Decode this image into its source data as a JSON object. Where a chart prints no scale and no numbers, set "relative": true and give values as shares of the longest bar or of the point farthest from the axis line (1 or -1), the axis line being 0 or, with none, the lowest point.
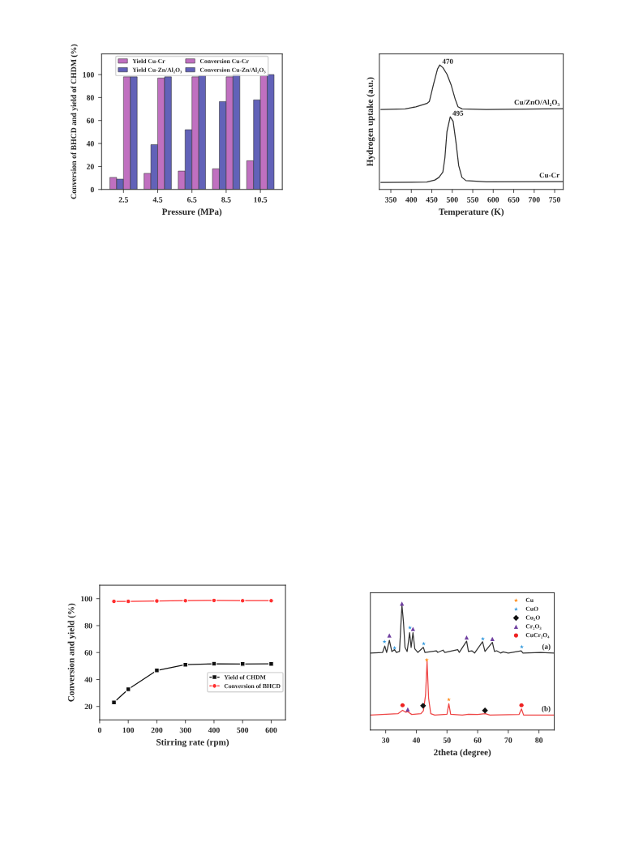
{
  "chart_data": [
    {
      "type": "bar",
      "categories": [
        "2.5",
        "4.5",
        "6.5",
        "8.5",
        "10.5"
      ],
      "xlabel": "Pressure (MPa)",
      "ylabel": "Conversion of BHCD and yield of CHDM (%)",
      "ylim": [
        0,
        118
      ],
      "yticks": [
        0,
        20,
        40,
        60,
        80,
        100
      ],
      "legend": "top",
      "series": [
        {
          "name": "Yield Cu-Cr",
          "color": "#c070c0",
          "values": [
            10.5,
            14,
            16,
            18,
            25
          ]
        },
        {
          "name": "Yield Cu-Zn/Al₂O₃",
          "color": "#6262b8",
          "values": [
            9,
            39,
            52,
            76.5,
            78
          ]
        },
        {
          "name": "Conversion Cu-Cr",
          "color": "#c070c0",
          "values": [
            98,
            97,
            98,
            98,
            99
          ]
        },
        {
          "name": "Conversion Cu-Zn/Al₂O₃",
          "color": "#6262b8",
          "values": [
            98,
            98,
            99,
            100,
            100
          ]
        }
      ]
    },
    {
      "type": "line",
      "relative": true,
      "xlabel": "Temperature (K)",
      "ylabel": "Hydrogen uptake (a.u.)",
      "xlim": [
        322,
        771
      ],
      "xticks": [
        350,
        400,
        450,
        500,
        550,
        600,
        650,
        700,
        750
      ],
      "series": [
        {
          "name": "Cu/ZnO/Al₂O₃",
          "color": "#303030",
          "x": [
            325.6,
            385,
            411,
            438,
            444,
            454,
            464,
            469.5,
            477,
            487,
            497,
            507,
            514,
            524,
            583,
            771
          ],
          "values": [
            0.643,
            0.647,
            0.664,
            0.691,
            0.706,
            0.842,
            0.968,
            1.0,
            0.979,
            0.926,
            0.842,
            0.727,
            0.664,
            0.647,
            0.643,
            0.649
          ]
        },
        {
          "name": "Cu-Cr",
          "color": "#303030",
          "x": [
            325.6,
            438,
            457.6,
            467.5,
            477,
            482,
            487,
            495,
            502,
            509,
            515.7,
            523.6,
            533.5,
            583,
            771
          ],
          "values": [
            0.057,
            0.059,
            0.076,
            0.097,
            0.139,
            0.254,
            0.464,
            0.584,
            0.548,
            0.38,
            0.191,
            0.097,
            0.071,
            0.061,
            0.063
          ]
        }
      ],
      "annotations": [
        {
          "text": "470",
          "x": 470,
          "y": 1.0
        },
        {
          "text": "495",
          "x": 495,
          "y": 0.584
        }
      ]
    },
    {
      "type": "line",
      "xlabel": "Stirring rate (rpm)",
      "ylabel": "Conversion and yield (%)",
      "xlim": [
        0,
        650
      ],
      "xticks": [
        0,
        100,
        200,
        300,
        400,
        500,
        600
      ],
      "ylim": [
        10,
        110
      ],
      "yticks": [
        20,
        40,
        60,
        80,
        100
      ],
      "legend": "right",
      "x": [
        50,
        100,
        200,
        300,
        400,
        500,
        600
      ],
      "series": [
        {
          "name": "Yield of CHDM",
          "color": "#111111",
          "marker": "square",
          "values": [
            23,
            32.8,
            46.7,
            51,
            51.7,
            51.5,
            51.6
          ]
        },
        {
          "name": "Conversion of BHCD",
          "color": "#ff3030",
          "marker": "circle",
          "values": [
            98,
            98,
            98.3,
            98.5,
            98.7,
            98.5,
            98.5
          ]
        }
      ]
    },
    {
      "type": "line",
      "relative": true,
      "xlabel": "2theta (degree)",
      "xlim": [
        25,
        85
      ],
      "xticks": [
        30,
        40,
        50,
        60,
        70,
        80
      ],
      "legend": "top right",
      "series": [
        {
          "name": "(a)",
          "color": "#333333",
          "x": [
            25,
            29,
            29.7,
            30.3,
            31.2,
            32,
            32.9,
            33.5,
            34.5,
            35.3,
            35.8,
            36.3,
            37,
            37.8,
            38.3,
            38.9,
            39.5,
            40.5,
            42.3,
            42.8,
            46.5,
            47,
            48.7,
            49.3,
            53.5,
            54,
            56.4,
            57,
            58.1,
            59,
            61.6,
            62.4,
            64.8,
            65.5,
            66.2,
            67.5,
            68.3,
            70,
            74.2,
            74.8,
            80.5,
            85
          ],
          "values": [
            0.609,
            0.614,
            0.665,
            0.614,
            0.71,
            0.621,
            0.636,
            0.614,
            0.621,
            0.989,
            0.855,
            0.654,
            0.621,
            0.77,
            0.654,
            0.77,
            0.643,
            0.614,
            0.654,
            0.614,
            0.627,
            0.614,
            0.632,
            0.614,
            0.636,
            0.614,
            0.703,
            0.621,
            0.627,
            0.609,
            0.699,
            0.621,
            0.694,
            0.621,
            0.627,
            0.609,
            0.618,
            0.609,
            0.627,
            0.609,
            0.614,
            0.609
          ]
        },
        {
          "name": "(b)",
          "color": "#ee4444",
          "x": [
            25,
            34,
            35.5,
            36.5,
            37.2,
            38.5,
            41.5,
            42.3,
            43,
            43.5,
            44,
            44.7,
            46,
            50,
            50.6,
            51.2,
            55,
            57,
            60,
            62.5,
            64,
            73.5,
            74.3,
            75,
            85
          ],
          "values": [
            0.118,
            0.129,
            0.156,
            0.141,
            0.145,
            0.123,
            0.129,
            0.152,
            0.275,
            0.542,
            0.252,
            0.129,
            0.118,
            0.125,
            0.208,
            0.125,
            0.118,
            0.125,
            0.123,
            0.129,
            0.118,
            0.123,
            0.167,
            0.118,
            0.118
          ]
        },
        {
          "name": "Cu",
          "type": "scatter",
          "marker": "star",
          "color": "#ff8c1a",
          "x": [
            43.4,
            50.6
          ],
          "values": [
            0.554,
            0.241
          ]
        },
        {
          "name": "CuO",
          "type": "scatter",
          "marker": "star",
          "color": "#3399dd",
          "x": [
            29.6,
            32.9,
            37.9,
            42.4,
            61.7,
            74.4
          ],
          "values": [
            0.699,
            0.65,
            0.81,
            0.683,
            0.721,
            0.658
          ]
        },
        {
          "name": "Cu₂O",
          "type": "scatter",
          "marker": "diamond",
          "color": "#111111",
          "x": [
            42.2,
            62.4
          ],
          "values": [
            0.192,
            0.154
          ]
        },
        {
          "name": "Cr₂O₃",
          "type": "scatter",
          "marker": "triangle",
          "color": "#7040a0",
          "x": [
            31.2,
            35.3,
            38.9,
            56.4,
            64.8,
            37.2
          ],
          "values": [
            0.748,
            1.0,
            0.799,
            0.732,
            0.721,
            0.163
          ]
        },
        {
          "name": "CuCr₂O₄",
          "type": "scatter",
          "marker": "circle",
          "color": "#ee2222",
          "x": [
            35.5,
            74.3
          ],
          "values": [
            0.196,
            0.196
          ]
        }
      ]
    }
  ]
}
